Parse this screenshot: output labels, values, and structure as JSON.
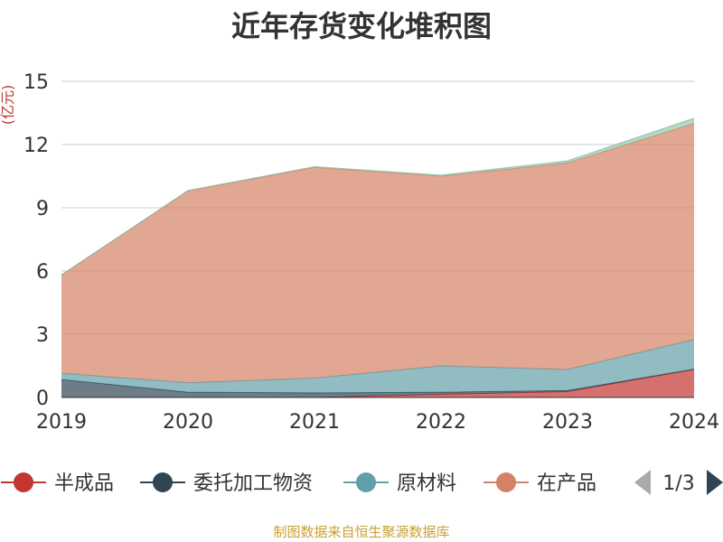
{
  "footer": {
    "source": "制图数据来自恒生聚源数据库"
  },
  "legend": {
    "page": "1/3"
  },
  "colors": {
    "半成品": "#c23531",
    "委托加工物资": "#2f4554",
    "原材料": "#61a0a8",
    "在产品": "#d48265",
    "top_series_line": "#91c7ae",
    "axis_unit": "#c23531",
    "grid": "#cccccc",
    "axis": "#333333",
    "pager_prev": "#aaaaaa",
    "pager_next": "#2f4554"
  },
  "icons": {
    "pager_prev": "triangle-left-icon",
    "pager_next": "triangle-right-icon"
  },
  "chart_data": {
    "type": "area",
    "stacked": true,
    "title": "近年存货变化堆积图",
    "ylabel": "(亿元)",
    "x": [
      "2019",
      "2020",
      "2021",
      "2022",
      "2023",
      "2024"
    ],
    "ylim": [
      0,
      15
    ],
    "yticks": [
      0,
      3,
      6,
      9,
      12,
      15
    ],
    "grid": true,
    "legend_position": "bottom",
    "series": [
      {
        "name": "半成品",
        "values": [
          0,
          0,
          0,
          0.15,
          0.28,
          1.33
        ]
      },
      {
        "name": "委托加工物资",
        "values": [
          0.85,
          0.25,
          0.22,
          0.1,
          0.05,
          0.02
        ]
      },
      {
        "name": "原材料",
        "values": [
          0.3,
          0.45,
          0.7,
          1.25,
          1.0,
          1.4
        ]
      },
      {
        "name": "在产品",
        "values": [
          4.65,
          9.1,
          10.0,
          9.0,
          9.8,
          10.25
        ]
      },
      {
        "values": [
          0.02,
          0.02,
          0.03,
          0.05,
          0.1,
          0.25
        ]
      }
    ]
  }
}
